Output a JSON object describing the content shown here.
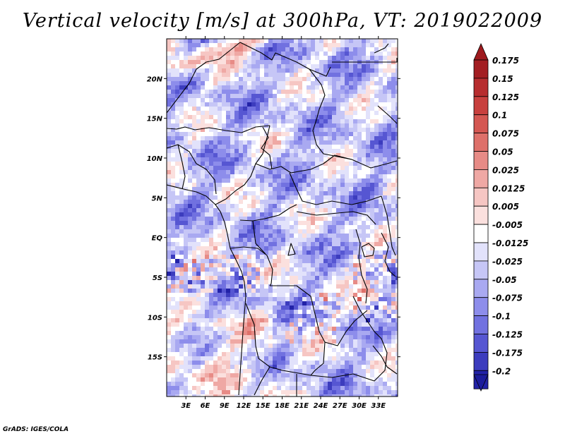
{
  "title": "Vertical velocity [m/s] at 300hPa, VT: 2019022009",
  "credit": "GrADS: IGES/COLA",
  "map": {
    "lon_range": [
      0,
      36
    ],
    "lat_range": [
      -20,
      25
    ],
    "lat_ticks": [
      {
        "label": "20N",
        "value": 20
      },
      {
        "label": "15N",
        "value": 15
      },
      {
        "label": "10N",
        "value": 10
      },
      {
        "label": "5N",
        "value": 5
      },
      {
        "label": "EQ",
        "value": 0
      },
      {
        "label": "5S",
        "value": -5
      },
      {
        "label": "10S",
        "value": -10
      },
      {
        "label": "15S",
        "value": -15
      }
    ],
    "lon_ticks": [
      {
        "label": "3E",
        "value": 3
      },
      {
        "label": "6E",
        "value": 6
      },
      {
        "label": "9E",
        "value": 9
      },
      {
        "label": "12E",
        "value": 12
      },
      {
        "label": "15E",
        "value": 15
      },
      {
        "label": "18E",
        "value": 18
      },
      {
        "label": "21E",
        "value": 21
      },
      {
        "label": "24E",
        "value": 24
      },
      {
        "label": "27E",
        "value": 27
      },
      {
        "label": "30E",
        "value": 30
      },
      {
        "label": "33E",
        "value": 33
      }
    ]
  },
  "colorbar": {
    "levels": [
      {
        "label": "0.175",
        "color": "#a31e22"
      },
      {
        "label": "0.15",
        "color": "#b72d2f"
      },
      {
        "label": "0.125",
        "color": "#c8403e"
      },
      {
        "label": "0.1",
        "color": "#d45752"
      },
      {
        "label": "0.075",
        "color": "#de706a"
      },
      {
        "label": "0.05",
        "color": "#e78b86"
      },
      {
        "label": "0.025",
        "color": "#efa8a4"
      },
      {
        "label": "0.0125",
        "color": "#f6c6c3"
      },
      {
        "label": "0.005",
        "color": "#fbe0de"
      },
      {
        "label": "-0.005",
        "color": "#ffffff"
      },
      {
        "label": "-0.0125",
        "color": "#e2e2fb"
      },
      {
        "label": "-0.025",
        "color": "#c6c6f6"
      },
      {
        "label": "-0.05",
        "color": "#a9a9f1"
      },
      {
        "label": "-0.075",
        "color": "#8d8deb"
      },
      {
        "label": "-0.1",
        "color": "#7171e0"
      },
      {
        "label": "-0.125",
        "color": "#5656d2"
      },
      {
        "label": "-0.175",
        "color": "#3c3cbe"
      },
      {
        "label": "-0.2",
        "color": "#2222a8"
      }
    ],
    "top_arrow_color": "#9e1a1e",
    "bottom_arrow_color": "#1c1c9c"
  }
}
